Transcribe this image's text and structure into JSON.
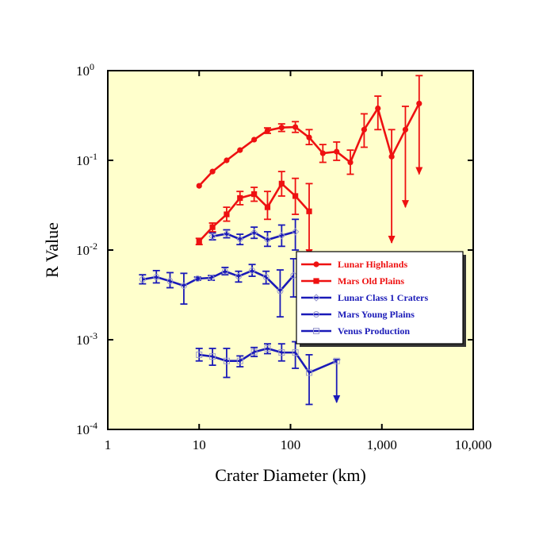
{
  "chart_data": {
    "type": "line",
    "title": "",
    "xlabel": "Crater Diameter (km)",
    "ylabel": "R Value",
    "x_scale": "log",
    "y_scale": "log",
    "xlim": [
      1,
      10000
    ],
    "ylim": [
      0.0001,
      1
    ],
    "x_ticks": [
      {
        "value": 1,
        "label": "1"
      },
      {
        "value": 10,
        "label": "10"
      },
      {
        "value": 100,
        "label": "100"
      },
      {
        "value": 1000,
        "label": "1,000"
      },
      {
        "value": 10000,
        "label": "10,000"
      }
    ],
    "y_ticks": [
      {
        "value": 1,
        "base": "10",
        "exp": "0"
      },
      {
        "value": 0.1,
        "base": "10",
        "exp": "-1"
      },
      {
        "value": 0.01,
        "base": "10",
        "exp": "-2"
      },
      {
        "value": 0.001,
        "base": "10",
        "exp": "-3"
      },
      {
        "value": 0.0001,
        "base": "10",
        "exp": "-4"
      }
    ],
    "grid": false,
    "legend_position": "right",
    "background_color": "#ffffcc",
    "series": [
      {
        "name": "Lunar Highlands",
        "color": "#ee1111",
        "marker": "circle",
        "points": [
          {
            "x": 10,
            "y": 0.052
          },
          {
            "x": 14,
            "y": 0.075
          },
          {
            "x": 20,
            "y": 0.1
          },
          {
            "x": 28,
            "y": 0.13
          },
          {
            "x": 40,
            "y": 0.17
          },
          {
            "x": 56,
            "y": 0.215,
            "lo": 0.2,
            "hi": 0.23
          },
          {
            "x": 80,
            "y": 0.232,
            "lo": 0.21,
            "hi": 0.255
          },
          {
            "x": 113,
            "y": 0.235,
            "lo": 0.205,
            "hi": 0.27
          },
          {
            "x": 160,
            "y": 0.18,
            "lo": 0.15,
            "hi": 0.22
          },
          {
            "x": 226,
            "y": 0.12,
            "lo": 0.095,
            "hi": 0.15
          },
          {
            "x": 320,
            "y": 0.125,
            "lo": 0.1,
            "hi": 0.16
          },
          {
            "x": 452,
            "y": 0.095,
            "lo": 0.07,
            "hi": 0.13
          },
          {
            "x": 640,
            "y": 0.22,
            "lo": 0.14,
            "hi": 0.33
          },
          {
            "x": 905,
            "y": 0.38,
            "lo": 0.22,
            "hi": 0.52
          },
          {
            "x": 1280,
            "y": 0.11,
            "lo": 0.012,
            "hi": 0.22,
            "limit": true
          },
          {
            "x": 1810,
            "y": 0.22,
            "lo": 0.03,
            "hi": 0.4,
            "limit": true
          },
          {
            "x": 2560,
            "y": 0.43,
            "lo": 0.07,
            "hi": 0.88,
            "limit": true
          }
        ]
      },
      {
        "name": "Mars Old Plains",
        "color": "#ee1111",
        "marker": "square",
        "points": [
          {
            "x": 10,
            "y": 0.0125,
            "lo": 0.0115,
            "hi": 0.0135
          },
          {
            "x": 14,
            "y": 0.018,
            "lo": 0.016,
            "hi": 0.02
          },
          {
            "x": 20,
            "y": 0.025,
            "lo": 0.021,
            "hi": 0.03
          },
          {
            "x": 28,
            "y": 0.038,
            "lo": 0.032,
            "hi": 0.045
          },
          {
            "x": 40,
            "y": 0.042,
            "lo": 0.035,
            "hi": 0.05
          },
          {
            "x": 56,
            "y": 0.03,
            "lo": 0.022,
            "hi": 0.045
          },
          {
            "x": 80,
            "y": 0.055,
            "lo": 0.04,
            "hi": 0.075
          },
          {
            "x": 113,
            "y": 0.04,
            "lo": 0.025,
            "hi": 0.063
          },
          {
            "x": 160,
            "y": 0.027,
            "lo": 0.0085,
            "hi": 0.055,
            "limit": true
          }
        ]
      },
      {
        "name": "Lunar Class 1 Craters",
        "color": "#1a1ab8",
        "marker": "diamond",
        "points": [
          {
            "x": 14,
            "y": 0.0142,
            "lo": 0.013,
            "hi": 0.0155
          },
          {
            "x": 20,
            "y": 0.0152,
            "lo": 0.0137,
            "hi": 0.0168
          },
          {
            "x": 28,
            "y": 0.0132,
            "lo": 0.0115,
            "hi": 0.015
          },
          {
            "x": 40,
            "y": 0.0157,
            "lo": 0.0135,
            "hi": 0.018
          },
          {
            "x": 56,
            "y": 0.013,
            "lo": 0.011,
            "hi": 0.016
          },
          {
            "x": 80,
            "y": 0.0145,
            "lo": 0.011,
            "hi": 0.019
          },
          {
            "x": 113,
            "y": 0.016,
            "lo": 0.01,
            "hi": 0.022
          }
        ]
      },
      {
        "name": "Mars Young Plains",
        "color": "#1a1ab8",
        "marker": "circle-open",
        "points": [
          {
            "x": 2.4,
            "y": 0.0047,
            "lo": 0.0042,
            "hi": 0.0053
          },
          {
            "x": 3.4,
            "y": 0.005,
            "lo": 0.0043,
            "hi": 0.0059
          },
          {
            "x": 4.8,
            "y": 0.0045,
            "lo": 0.0038,
            "hi": 0.0056
          },
          {
            "x": 6.8,
            "y": 0.004,
            "lo": 0.0025,
            "hi": 0.0055
          },
          {
            "x": 9.6,
            "y": 0.0048,
            "lo": 0.0046,
            "hi": 0.005
          },
          {
            "x": 13.6,
            "y": 0.0049,
            "lo": 0.0046,
            "hi": 0.0052
          },
          {
            "x": 19.2,
            "y": 0.0058,
            "lo": 0.0053,
            "hi": 0.0064
          },
          {
            "x": 27,
            "y": 0.0051,
            "lo": 0.0044,
            "hi": 0.0058
          },
          {
            "x": 38,
            "y": 0.0059,
            "lo": 0.0051,
            "hi": 0.0069
          },
          {
            "x": 54,
            "y": 0.005,
            "lo": 0.0042,
            "hi": 0.0058
          },
          {
            "x": 77,
            "y": 0.0035,
            "lo": 0.0018,
            "hi": 0.006
          },
          {
            "x": 108,
            "y": 0.0052,
            "lo": 0.003,
            "hi": 0.008
          }
        ]
      },
      {
        "name": "Venus Production",
        "color": "#1a1ab8",
        "marker": "square-open",
        "points": [
          {
            "x": 10,
            "y": 0.00068,
            "lo": 0.00058,
            "hi": 0.0008
          },
          {
            "x": 14,
            "y": 0.00065,
            "lo": 0.00052,
            "hi": 0.0008
          },
          {
            "x": 20,
            "y": 0.00058,
            "lo": 0.00038,
            "hi": 0.0008
          },
          {
            "x": 28,
            "y": 0.00058,
            "lo": 0.0005,
            "hi": 0.00066
          },
          {
            "x": 40,
            "y": 0.00073,
            "lo": 0.00065,
            "hi": 0.00082
          },
          {
            "x": 56,
            "y": 0.0008,
            "lo": 0.0007,
            "hi": 0.0009
          },
          {
            "x": 80,
            "y": 0.00072,
            "lo": 0.00058,
            "hi": 0.0009
          },
          {
            "x": 113,
            "y": 0.00072,
            "lo": 0.00048,
            "hi": 0.00095
          },
          {
            "x": 160,
            "y": 0.00043,
            "lo": 0.00019,
            "hi": 0.00068
          },
          {
            "x": 320,
            "y": 0.00058,
            "lo": 0.0002,
            "hi": 0.0006,
            "limit": true
          }
        ]
      }
    ]
  }
}
